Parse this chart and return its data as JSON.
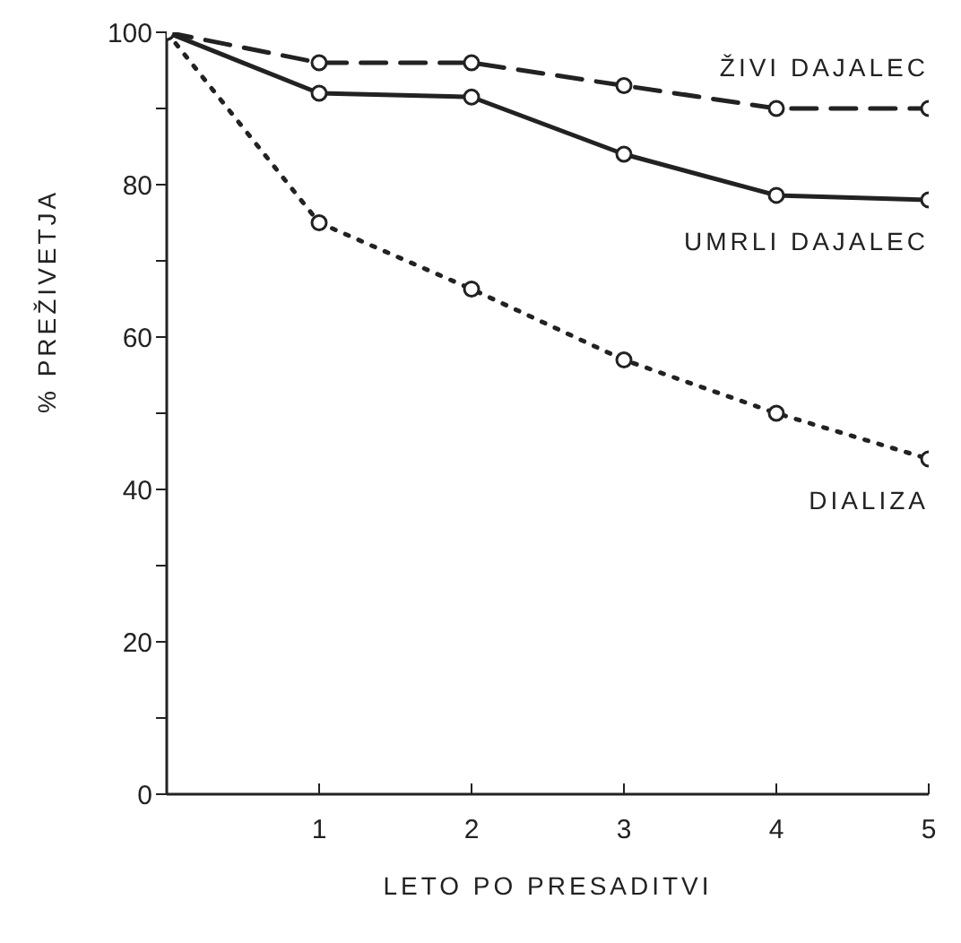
{
  "chart_data": {
    "type": "line",
    "xlabel": "LETO PO PRESADITVI",
    "ylabel": "% PREŽIVETJA",
    "x": [
      0,
      1,
      2,
      3,
      4,
      5
    ],
    "series": [
      {
        "name": "ŽIVI DAJALEC",
        "color": "#222222",
        "line_style": "dashed",
        "values": [
          100,
          96,
          96,
          93,
          90,
          90
        ]
      },
      {
        "name": "UMRLI DAJALEC",
        "color": "#222222",
        "line_style": "solid",
        "values": [
          100,
          92,
          91.5,
          84,
          78.6,
          78
        ]
      },
      {
        "name": "DIALIZA",
        "color": "#222222",
        "line_style": "dotted",
        "values": [
          100,
          75,
          66.3,
          57,
          50,
          44
        ]
      }
    ],
    "xlim": [
      0,
      5
    ],
    "xticks": [
      1,
      2,
      3,
      4,
      5
    ],
    "ylim": [
      0,
      100
    ],
    "yticks": [
      0,
      {
        "value": 10,
        "label": null
      },
      20,
      {
        "value": 30,
        "label": null
      },
      40,
      {
        "value": 50,
        "label": null
      },
      60,
      {
        "value": 70,
        "label": null
      },
      80,
      {
        "value": 90,
        "label": null
      },
      100
    ],
    "marker": "circle",
    "grid": false,
    "legend": false
  }
}
